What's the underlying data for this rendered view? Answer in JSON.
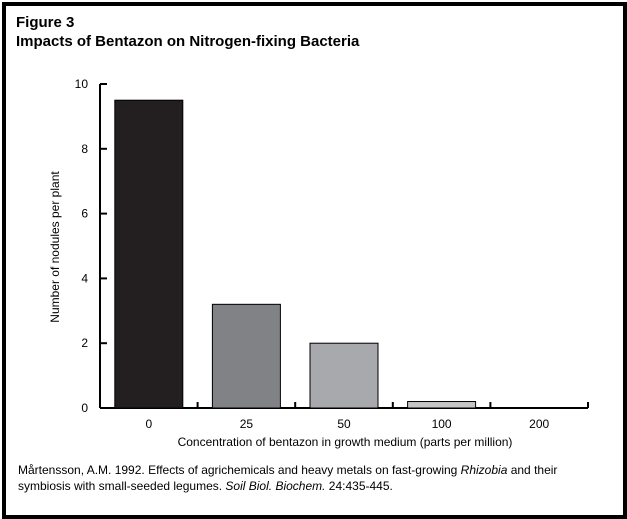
{
  "figure": {
    "label": "Figure 3",
    "title": "Impacts of Bentazon on Nitrogen-fixing Bacteria"
  },
  "chart_data": {
    "type": "bar",
    "categories": [
      "0",
      "25",
      "50",
      "100",
      "200"
    ],
    "values": [
      9.5,
      3.2,
      2.0,
      0.2,
      0
    ],
    "bar_colors": [
      "#231f20",
      "#808285",
      "#a7a9ac",
      "#c3c4c6",
      "#d1d3d4"
    ],
    "xlabel": "Concentration of bentazon in growth medium (parts per million)",
    "ylabel": "Number of nodules per plant",
    "ylim": [
      0,
      10
    ],
    "yticks": [
      "0",
      "2",
      "4",
      "6",
      "8",
      "10"
    ],
    "grid": false,
    "legend": "none"
  },
  "citation": {
    "part1": "Mårtensson, A.M. 1992. Effects of agrichemicals and heavy metals on fast-growing ",
    "italic1": "Rhizobia",
    "part2": " and their symbiosis with small-seeded legumes. ",
    "italic2": "Soil Biol. Biochem.",
    "part3": " 24:435-445."
  }
}
